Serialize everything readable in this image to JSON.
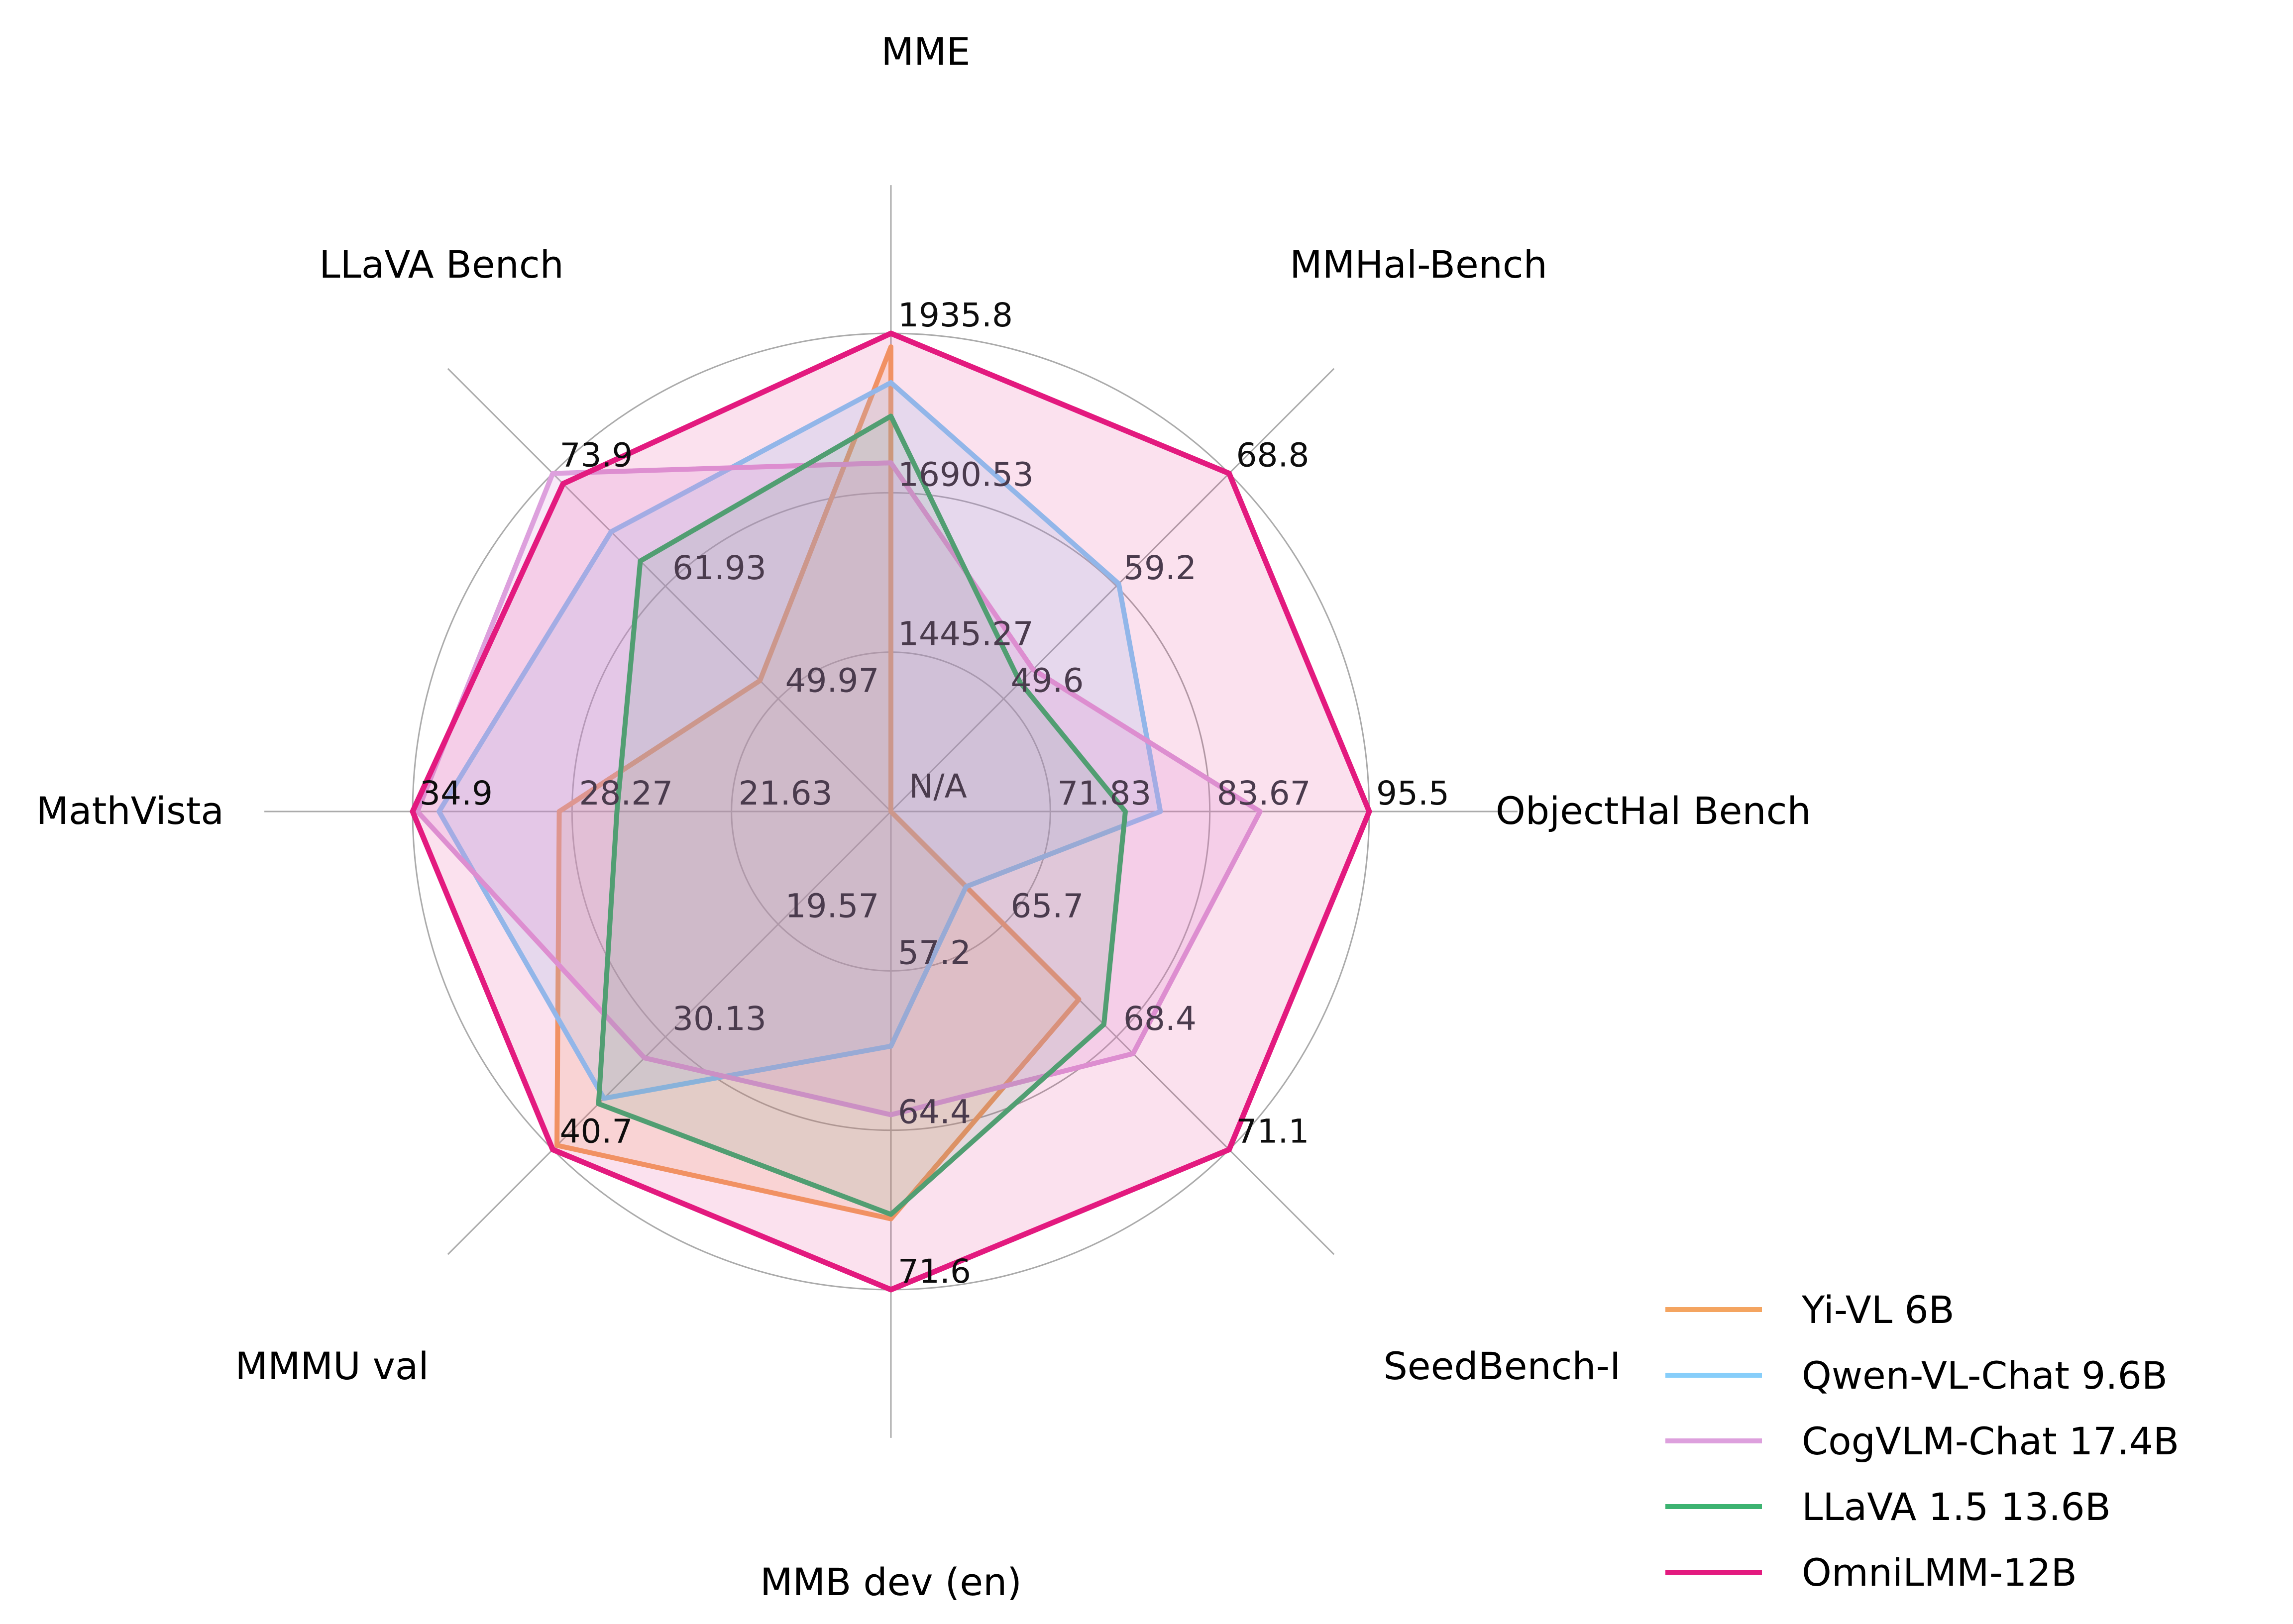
{
  "figure": {
    "background_color": "#ffffff",
    "grid_color": "#ABABAB",
    "inner_tick_color": "#4a3b4d",
    "outer_tick_color": "#0d0d0d"
  },
  "chart_data": {
    "type": "radar",
    "title": "",
    "grid": {
      "rings": 3,
      "shape": "circle",
      "grid_on": true
    },
    "legend_position": "lower right",
    "center_label": "N/A",
    "axes": [
      {
        "label": "MME",
        "min": 1200.0,
        "max": 1935.8,
        "tick_labels": [
          "1445.27",
          "1690.53",
          "1935.8"
        ]
      },
      {
        "label": "MMHal-Bench",
        "min": 40.0,
        "max": 68.8,
        "tick_labels": [
          "49.6",
          "59.2",
          "68.8"
        ]
      },
      {
        "label": "ObjectHal Bench",
        "min": 60.0,
        "max": 95.5,
        "tick_labels": [
          "71.83",
          "83.67",
          "95.5"
        ]
      },
      {
        "label": "SeedBench-I",
        "min": 63.0,
        "max": 71.1,
        "tick_labels": [
          "65.7",
          "68.4",
          "71.1"
        ]
      },
      {
        "label": "MMB dev (en)",
        "min": 50.0,
        "max": 71.6,
        "tick_labels": [
          "57.2",
          "64.4",
          "71.6"
        ]
      },
      {
        "label": "MMMU val",
        "min": 9.0,
        "max": 40.7,
        "tick_labels": [
          "19.57",
          "30.13",
          "40.7"
        ]
      },
      {
        "label": "MathVista",
        "min": 15.0,
        "max": 34.9,
        "tick_labels": [
          "21.63",
          "28.27",
          "34.9"
        ]
      },
      {
        "label": "LLaVA Bench",
        "min": 38.0,
        "max": 73.9,
        "tick_labels": [
          "49.97",
          "61.93",
          "73.9"
        ]
      }
    ],
    "series": [
      {
        "name": "Yi-VL 6B",
        "color": "#F4A460",
        "values": [
          1915.1,
          null,
          null,
          67.5,
          68.4,
          40.3,
          28.8,
          51.9
        ]
      },
      {
        "name": "Qwen-VL-Chat 9.6B",
        "color": "#87CEFA",
        "values": [
          1860.0,
          59.4,
          80.0,
          64.8,
          60.6,
          35.9,
          33.8,
          67.7
        ]
      },
      {
        "name": "CogVLM-Chat 17.4B",
        "color": "#DDA0DD",
        "values": [
          1736.6,
          52.1,
          87.4,
          68.8,
          63.7,
          32.1,
          34.7,
          73.9
        ]
      },
      {
        "name": "LLaVA 1.5 13.6B",
        "color": "#3CB371",
        "values": [
          1808.4,
          51.0,
          77.4,
          68.1,
          68.2,
          36.4,
          26.4,
          64.6
        ]
      },
      {
        "name": "OmniLMM-12B",
        "color": "#E31A7F",
        "values": [
          1935.8,
          68.8,
          95.5,
          71.1,
          71.6,
          40.7,
          34.9,
          72.8
        ]
      }
    ],
    "note_na_series": "Yi-VL 6B has N/A on MMHal-Bench and ObjectHal Bench (plotted at center)"
  }
}
